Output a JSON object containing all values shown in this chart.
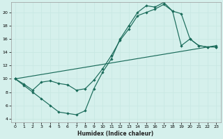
{
  "xlabel": "Humidex (Indice chaleur)",
  "bg_color": "#d5f0ec",
  "grid_major_color": "#c8e8e3",
  "grid_minor_color": "#daf3ef",
  "line_color": "#1a6b5a",
  "xlim": [
    -0.5,
    23.5
  ],
  "ylim": [
    3.5,
    21.5
  ],
  "yticks": [
    4,
    6,
    8,
    10,
    12,
    14,
    16,
    18,
    20
  ],
  "xticks": [
    0,
    1,
    2,
    3,
    4,
    5,
    6,
    7,
    8,
    9,
    10,
    11,
    12,
    13,
    14,
    15,
    16,
    17,
    18,
    19,
    20,
    21,
    22,
    23
  ],
  "curve1_x": [
    0,
    1,
    2,
    3,
    4,
    5,
    6,
    7,
    8,
    9,
    10,
    11,
    12,
    13,
    14,
    15,
    16,
    17,
    18,
    19,
    20,
    21,
    22,
    23
  ],
  "curve1_y": [
    10,
    9,
    8,
    7,
    6,
    5,
    4.8,
    4.6,
    5.2,
    8.5,
    11,
    13,
    16,
    18,
    20,
    21,
    20.8,
    21.5,
    20.2,
    15,
    16,
    15,
    14.8,
    14.8
  ],
  "curve2_x": [
    0,
    1,
    2,
    3,
    4,
    5,
    6,
    7,
    8,
    9,
    10,
    11,
    12,
    13,
    14,
    15,
    16,
    17,
    18,
    19,
    20,
    21,
    22,
    23
  ],
  "curve2_y": [
    10,
    9.2,
    8.3,
    9.5,
    9.7,
    9.3,
    9.1,
    8.3,
    8.5,
    9.8,
    11.5,
    13.5,
    15.8,
    17.5,
    19.5,
    20.0,
    20.5,
    21.2,
    20.2,
    19.8,
    16.0,
    15.0,
    14.8,
    14.8
  ],
  "line3_x": [
    0,
    23
  ],
  "line3_y": [
    10,
    15
  ]
}
